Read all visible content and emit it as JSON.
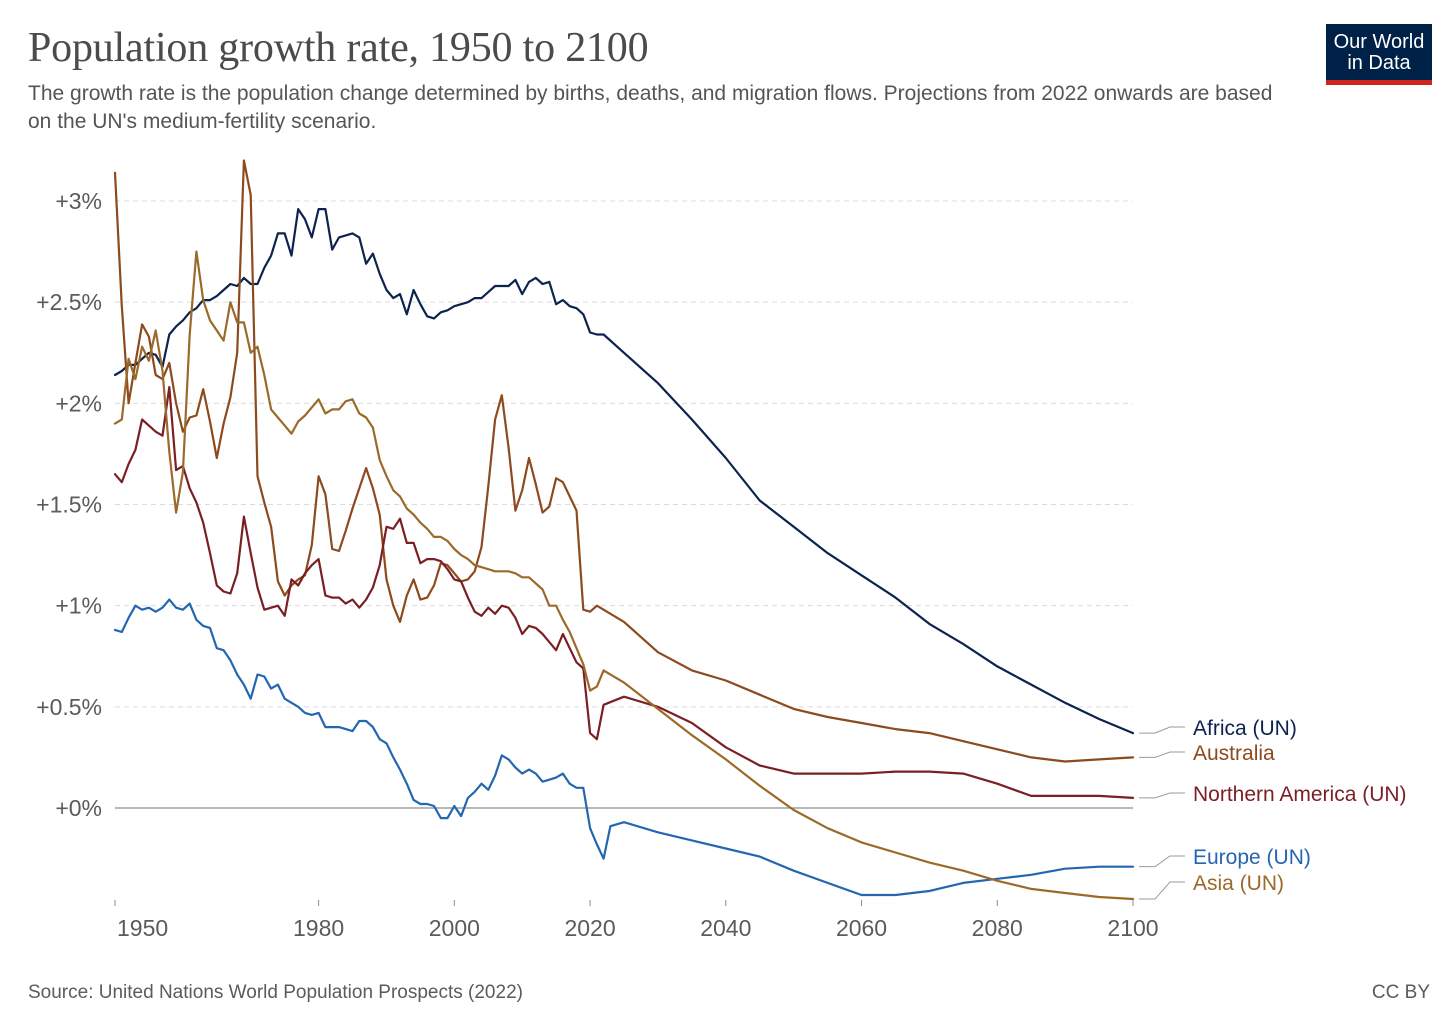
{
  "title": "Population growth rate, 1950 to 2100",
  "subtitle": "The growth rate is the population change determined by births, deaths, and migration flows. Projections from 2022 onwards are based on the UN's medium-fertility scenario.",
  "logo": {
    "line1": "Our World",
    "line2": "in Data"
  },
  "footer": {
    "source": "Source: United Nations World Population Prospects (2022)",
    "license": "CC BY"
  },
  "colors": {
    "Africa (UN)": "#0c2350",
    "Australia": "#8c4a1e",
    "Northern America (UN)": "#7a1f24",
    "Europe (UN)": "#2466b0",
    "Asia (UN)": "#9b6a2a"
  },
  "chart_data": {
    "type": "line",
    "title": "Population growth rate, 1950 to 2100",
    "xlim": [
      1950,
      2100
    ],
    "ylim": [
      -0.45,
      3.0
    ],
    "x_ticks": [
      1950,
      1980,
      2000,
      2020,
      2040,
      2060,
      2080,
      2100
    ],
    "x_tick_labels": [
      "1950",
      "1980",
      "2000",
      "2020",
      "2040",
      "2060",
      "2080",
      "2100"
    ],
    "y_ticks": [
      0,
      0.5,
      1,
      1.5,
      2,
      2.5,
      3
    ],
    "y_tick_labels": [
      "+0%",
      "+0.5%",
      "+1%",
      "+1.5%",
      "+2%",
      "+2.5%",
      "+3%"
    ],
    "grid": "horizontal dashed",
    "legend": "right, labels at line ends",
    "series": [
      {
        "name": "Africa (UN)",
        "color": "#0c2350",
        "x": [
          1950,
          1951,
          1952,
          1953,
          1954,
          1955,
          1956,
          1957,
          1958,
          1959,
          1960,
          1961,
          1962,
          1963,
          1964,
          1965,
          1966,
          1967,
          1968,
          1969,
          1970,
          1971,
          1972,
          1973,
          1974,
          1975,
          1976,
          1977,
          1978,
          1979,
          1980,
          1981,
          1982,
          1983,
          1984,
          1985,
          1986,
          1987,
          1988,
          1989,
          1990,
          1991,
          1992,
          1993,
          1994,
          1995,
          1996,
          1997,
          1998,
          1999,
          2000,
          2001,
          2002,
          2003,
          2004,
          2005,
          2006,
          2007,
          2008,
          2009,
          2010,
          2011,
          2012,
          2013,
          2014,
          2015,
          2016,
          2017,
          2018,
          2019,
          2020,
          2021,
          2022,
          2025,
          2030,
          2035,
          2040,
          2045,
          2050,
          2055,
          2060,
          2065,
          2070,
          2075,
          2080,
          2085,
          2090,
          2095,
          2100
        ],
        "y": [
          2.14,
          2.16,
          2.19,
          2.19,
          2.22,
          2.25,
          2.24,
          2.18,
          2.34,
          2.38,
          2.41,
          2.45,
          2.47,
          2.51,
          2.51,
          2.53,
          2.56,
          2.59,
          2.58,
          2.62,
          2.59,
          2.59,
          2.67,
          2.73,
          2.84,
          2.84,
          2.73,
          2.96,
          2.91,
          2.82,
          2.96,
          2.96,
          2.76,
          2.82,
          2.83,
          2.84,
          2.82,
          2.69,
          2.74,
          2.64,
          2.56,
          2.52,
          2.54,
          2.44,
          2.56,
          2.49,
          2.43,
          2.42,
          2.45,
          2.46,
          2.48,
          2.49,
          2.5,
          2.52,
          2.52,
          2.55,
          2.58,
          2.58,
          2.58,
          2.61,
          2.54,
          2.6,
          2.62,
          2.59,
          2.6,
          2.49,
          2.51,
          2.48,
          2.47,
          2.44,
          2.35,
          2.34,
          2.34,
          2.25,
          2.1,
          1.92,
          1.73,
          1.52,
          1.39,
          1.26,
          1.15,
          1.04,
          0.91,
          0.81,
          0.7,
          0.61,
          0.52,
          0.44,
          0.37
        ]
      },
      {
        "name": "Australia",
        "color": "#8c4a1e",
        "x": [
          1950,
          1951,
          1952,
          1953,
          1954,
          1955,
          1956,
          1957,
          1958,
          1959,
          1960,
          1961,
          1962,
          1963,
          1964,
          1965,
          1966,
          1967,
          1968,
          1969,
          1970,
          1971,
          1972,
          1973,
          1974,
          1975,
          1976,
          1977,
          1978,
          1979,
          1980,
          1981,
          1982,
          1983,
          1984,
          1985,
          1986,
          1987,
          1988,
          1989,
          1990,
          1991,
          1992,
          1993,
          1994,
          1995,
          1996,
          1997,
          1998,
          1999,
          2000,
          2001,
          2002,
          2003,
          2004,
          2005,
          2006,
          2007,
          2008,
          2009,
          2010,
          2011,
          2012,
          2013,
          2014,
          2015,
          2016,
          2017,
          2018,
          2019,
          2020,
          2021,
          2022,
          2025,
          2030,
          2035,
          2040,
          2045,
          2050,
          2055,
          2060,
          2065,
          2070,
          2075,
          2080,
          2085,
          2090,
          2095,
          2100
        ],
        "y": [
          3.14,
          2.48,
          2.0,
          2.2,
          2.39,
          2.33,
          2.14,
          2.12,
          2.2,
          2.0,
          1.86,
          1.93,
          1.94,
          2.07,
          1.91,
          1.73,
          1.9,
          2.03,
          2.25,
          3.2,
          3.03,
          1.64,
          1.51,
          1.39,
          1.12,
          1.05,
          1.1,
          1.13,
          1.15,
          1.3,
          1.64,
          1.55,
          1.28,
          1.27,
          1.37,
          1.48,
          1.58,
          1.68,
          1.58,
          1.45,
          1.13,
          1.0,
          0.92,
          1.05,
          1.13,
          1.03,
          1.04,
          1.1,
          1.21,
          1.2,
          1.16,
          1.12,
          1.13,
          1.17,
          1.29,
          1.59,
          1.92,
          2.04,
          1.78,
          1.47,
          1.57,
          1.73,
          1.6,
          1.46,
          1.49,
          1.63,
          1.61,
          1.54,
          1.47,
          0.98,
          0.97,
          1.0,
          0.98,
          0.92,
          0.77,
          0.68,
          0.63,
          0.56,
          0.49,
          0.45,
          0.42,
          0.39,
          0.37,
          0.33,
          0.29,
          0.25,
          0.23,
          0.24,
          0.25
        ]
      },
      {
        "name": "Northern America (UN)",
        "color": "#7a1f24",
        "x": [
          1950,
          1951,
          1952,
          1953,
          1954,
          1955,
          1956,
          1957,
          1958,
          1959,
          1960,
          1961,
          1962,
          1963,
          1964,
          1965,
          1966,
          1967,
          1968,
          1969,
          1970,
          1971,
          1972,
          1973,
          1974,
          1975,
          1976,
          1977,
          1978,
          1979,
          1980,
          1981,
          1982,
          1983,
          1984,
          1985,
          1986,
          1987,
          1988,
          1989,
          1990,
          1991,
          1992,
          1993,
          1994,
          1995,
          1996,
          1997,
          1998,
          1999,
          2000,
          2001,
          2002,
          2003,
          2004,
          2005,
          2006,
          2007,
          2008,
          2009,
          2010,
          2011,
          2012,
          2013,
          2014,
          2015,
          2016,
          2017,
          2018,
          2019,
          2020,
          2021,
          2022,
          2025,
          2030,
          2035,
          2040,
          2045,
          2050,
          2055,
          2060,
          2065,
          2070,
          2075,
          2080,
          2085,
          2090,
          2095,
          2100
        ],
        "y": [
          1.65,
          1.61,
          1.7,
          1.77,
          1.92,
          1.89,
          1.86,
          1.84,
          2.08,
          1.67,
          1.69,
          1.58,
          1.51,
          1.41,
          1.26,
          1.1,
          1.07,
          1.06,
          1.16,
          1.44,
          1.26,
          1.09,
          0.98,
          0.99,
          1.0,
          0.95,
          1.13,
          1.1,
          1.16,
          1.2,
          1.23,
          1.05,
          1.04,
          1.04,
          1.01,
          1.03,
          0.99,
          1.03,
          1.09,
          1.2,
          1.39,
          1.38,
          1.43,
          1.31,
          1.31,
          1.21,
          1.23,
          1.23,
          1.22,
          1.18,
          1.13,
          1.12,
          1.04,
          0.97,
          0.95,
          0.99,
          0.96,
          1.0,
          0.99,
          0.94,
          0.86,
          0.9,
          0.89,
          0.86,
          0.82,
          0.78,
          0.86,
          0.79,
          0.72,
          0.69,
          0.37,
          0.34,
          0.51,
          0.55,
          0.5,
          0.42,
          0.3,
          0.21,
          0.17,
          0.17,
          0.17,
          0.18,
          0.18,
          0.17,
          0.12,
          0.06,
          0.06,
          0.06,
          0.05
        ]
      },
      {
        "name": "Europe (UN)",
        "color": "#2466b0",
        "x": [
          1950,
          1951,
          1952,
          1953,
          1954,
          1955,
          1956,
          1957,
          1958,
          1959,
          1960,
          1961,
          1962,
          1963,
          1964,
          1965,
          1966,
          1967,
          1968,
          1969,
          1970,
          1971,
          1972,
          1973,
          1974,
          1975,
          1976,
          1977,
          1978,
          1979,
          1980,
          1981,
          1982,
          1983,
          1984,
          1985,
          1986,
          1987,
          1988,
          1989,
          1990,
          1991,
          1992,
          1993,
          1994,
          1995,
          1996,
          1997,
          1998,
          1999,
          2000,
          2001,
          2002,
          2003,
          2004,
          2005,
          2006,
          2007,
          2008,
          2009,
          2010,
          2011,
          2012,
          2013,
          2014,
          2015,
          2016,
          2017,
          2018,
          2019,
          2020,
          2021,
          2022,
          2023,
          2025,
          2030,
          2035,
          2040,
          2045,
          2050,
          2055,
          2060,
          2065,
          2070,
          2075,
          2080,
          2085,
          2090,
          2095,
          2100
        ],
        "y": [
          0.88,
          0.87,
          0.94,
          1.0,
          0.98,
          0.99,
          0.97,
          0.99,
          1.03,
          0.99,
          0.98,
          1.01,
          0.93,
          0.9,
          0.89,
          0.79,
          0.78,
          0.73,
          0.66,
          0.61,
          0.54,
          0.66,
          0.65,
          0.59,
          0.61,
          0.54,
          0.52,
          0.5,
          0.47,
          0.46,
          0.47,
          0.4,
          0.4,
          0.4,
          0.39,
          0.38,
          0.43,
          0.43,
          0.4,
          0.34,
          0.32,
          0.25,
          0.19,
          0.12,
          0.04,
          0.02,
          0.02,
          0.01,
          -0.05,
          -0.05,
          0.01,
          -0.04,
          0.05,
          0.08,
          0.12,
          0.09,
          0.16,
          0.26,
          0.24,
          0.2,
          0.17,
          0.19,
          0.17,
          0.13,
          0.14,
          0.15,
          0.17,
          0.12,
          0.1,
          0.1,
          -0.1,
          -0.18,
          -0.25,
          -0.09,
          -0.07,
          -0.12,
          -0.16,
          -0.2,
          -0.24,
          -0.31,
          -0.37,
          -0.43,
          -0.43,
          -0.41,
          -0.37,
          -0.35,
          -0.33,
          -0.3,
          -0.29,
          -0.29
        ]
      },
      {
        "name": "Asia (UN)",
        "color": "#9b6a2a",
        "x": [
          1950,
          1951,
          1952,
          1953,
          1954,
          1955,
          1956,
          1957,
          1958,
          1959,
          1960,
          1961,
          1962,
          1963,
          1964,
          1965,
          1966,
          1967,
          1968,
          1969,
          1970,
          1971,
          1972,
          1973,
          1974,
          1975,
          1976,
          1977,
          1978,
          1979,
          1980,
          1981,
          1982,
          1983,
          1984,
          1985,
          1986,
          1987,
          1988,
          1989,
          1990,
          1991,
          1992,
          1993,
          1994,
          1995,
          1996,
          1997,
          1998,
          1999,
          2000,
          2001,
          2002,
          2003,
          2004,
          2005,
          2006,
          2007,
          2008,
          2009,
          2010,
          2011,
          2012,
          2013,
          2014,
          2015,
          2016,
          2017,
          2018,
          2019,
          2020,
          2021,
          2022,
          2025,
          2030,
          2035,
          2040,
          2045,
          2050,
          2055,
          2060,
          2065,
          2070,
          2075,
          2080,
          2085,
          2090,
          2095,
          2100
        ],
        "y": [
          1.9,
          1.92,
          2.22,
          2.12,
          2.28,
          2.21,
          2.36,
          2.16,
          1.76,
          1.46,
          1.66,
          2.34,
          2.75,
          2.51,
          2.41,
          2.36,
          2.31,
          2.5,
          2.4,
          2.4,
          2.25,
          2.28,
          2.14,
          1.97,
          1.93,
          1.89,
          1.85,
          1.91,
          1.94,
          1.98,
          2.02,
          1.95,
          1.97,
          1.97,
          2.01,
          2.02,
          1.95,
          1.93,
          1.88,
          1.72,
          1.64,
          1.57,
          1.54,
          1.48,
          1.45,
          1.41,
          1.38,
          1.34,
          1.34,
          1.32,
          1.28,
          1.25,
          1.23,
          1.2,
          1.19,
          1.18,
          1.17,
          1.17,
          1.17,
          1.16,
          1.14,
          1.14,
          1.11,
          1.08,
          1.0,
          1.0,
          0.93,
          0.87,
          0.79,
          0.71,
          0.58,
          0.6,
          0.68,
          0.62,
          0.49,
          0.36,
          0.24,
          0.11,
          -0.01,
          -0.1,
          -0.17,
          -0.22,
          -0.27,
          -0.31,
          -0.36,
          -0.4,
          -0.42,
          -0.44,
          -0.45
        ]
      }
    ]
  }
}
